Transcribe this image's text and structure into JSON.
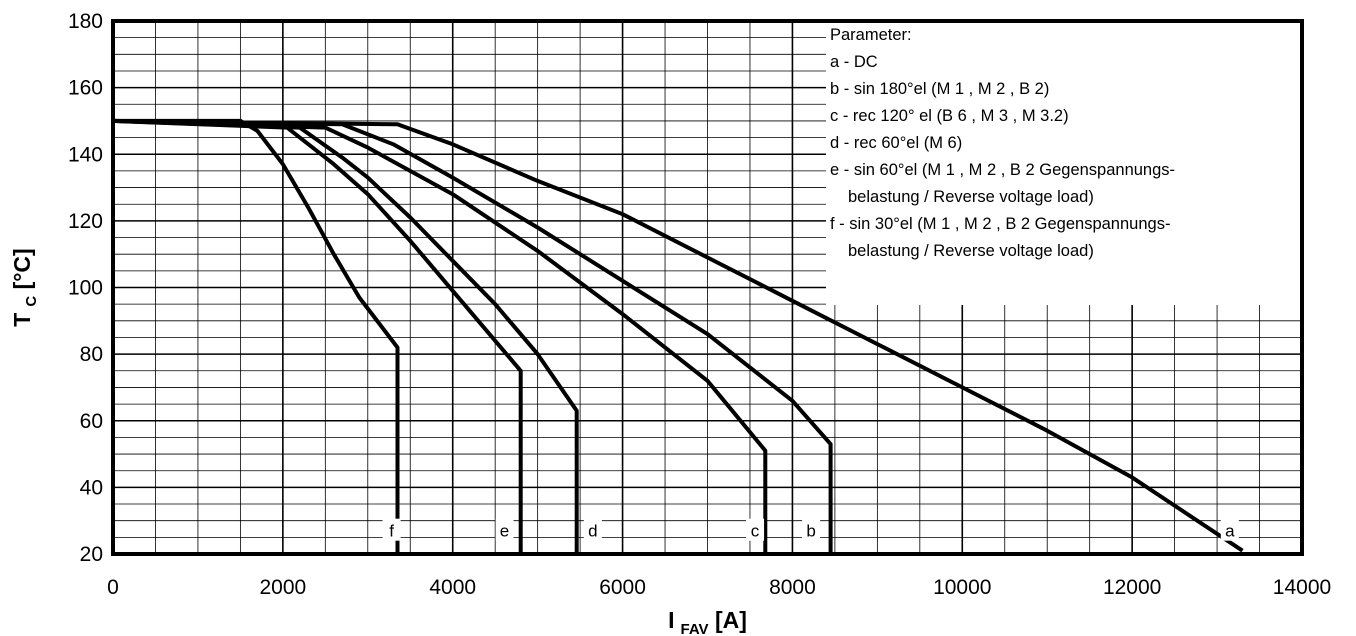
{
  "chart_data": {
    "type": "line",
    "xlabel": {
      "main": "I",
      "sub": "FAV",
      "unit": " [A]"
    },
    "ylabel": {
      "main": "T",
      "sub": "C",
      "unit": " [°C]"
    },
    "xlim": [
      0,
      14000
    ],
    "ylim": [
      20,
      180
    ],
    "xticks": [
      0,
      2000,
      4000,
      6000,
      8000,
      10000,
      12000,
      14000
    ],
    "yticks": [
      20,
      40,
      60,
      80,
      100,
      120,
      140,
      160,
      180
    ],
    "x_minor_step": 500,
    "y_minor_step": 5,
    "grid": true,
    "legend_position": "top-right",
    "legend": [
      "Parameter:",
      "a - DC",
      "b - sin 180°el (M 1 , M 2 , B 2)",
      "c - rec 120° el (B 6 , M 3 , M 3.2)",
      "d - rec 60°el (M 6)",
      "e - sin 60°el (M 1 , M 2 , B 2 Gegenspannungs-",
      "belastung / Reverse voltage load)",
      "f  - sin 30°el (M 1 , M 2 , B 2 Gegenspannungs-",
      "belastung / Reverse voltage load)"
    ],
    "series": [
      {
        "name": "a",
        "x": [
          0,
          3350,
          4000,
          5000,
          6000,
          7000,
          8000,
          9000,
          10000,
          11000,
          12000,
          13300
        ],
        "y": [
          150,
          149,
          143,
          132,
          122,
          109,
          96,
          83,
          70,
          57,
          43,
          21
        ]
      },
      {
        "name": "b",
        "x": [
          0,
          2700,
          3300,
          4000,
          5000,
          6000,
          7000,
          8000,
          8450,
          8450
        ],
        "y": [
          150,
          149,
          143,
          133,
          118,
          102,
          86,
          66,
          53,
          20
        ]
      },
      {
        "name": "c",
        "x": [
          0,
          2500,
          3000,
          4000,
          5000,
          6000,
          7000,
          7680,
          7680
        ],
        "y": [
          150,
          148,
          142,
          128,
          111,
          92,
          72,
          51,
          20
        ]
      },
      {
        "name": "d",
        "x": [
          0,
          2200,
          2700,
          3000,
          3500,
          4000,
          4500,
          5000,
          5460,
          5460
        ],
        "y": [
          150,
          148,
          139,
          133,
          121,
          108,
          95,
          80,
          63,
          20
        ]
      },
      {
        "name": "e",
        "x": [
          0,
          2050,
          2600,
          3000,
          3500,
          4000,
          4500,
          4800,
          4800
        ],
        "y": [
          150,
          148,
          137,
          128,
          114,
          99,
          84,
          75,
          20
        ]
      },
      {
        "name": "f",
        "x": [
          0,
          1500,
          1700,
          2000,
          2300,
          2600,
          2900,
          3350,
          3350
        ],
        "y": [
          150,
          150,
          147,
          137,
          124,
          110,
          97,
          82,
          20
        ]
      }
    ],
    "curve_labels": [
      {
        "text": "a",
        "x": 13150
      },
      {
        "text": "b",
        "x": 8220
      },
      {
        "text": "c",
        "x": 7560
      },
      {
        "text": "d",
        "x": 5650
      },
      {
        "text": "e",
        "x": 4610
      },
      {
        "text": "f",
        "x": 3280
      }
    ],
    "curve_label_y": 27
  }
}
